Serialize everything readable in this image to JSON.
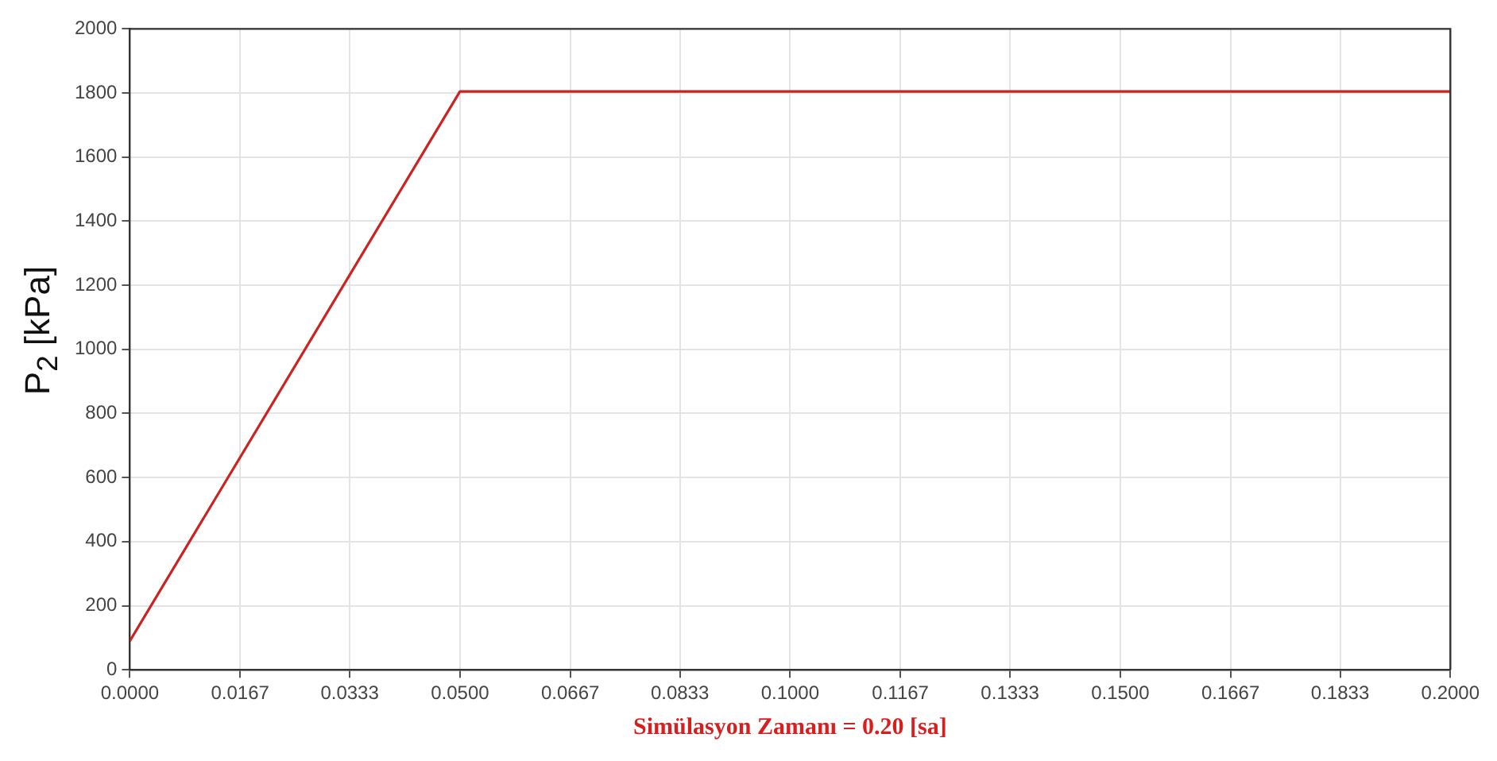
{
  "chart_data": {
    "type": "line",
    "xlabel": "Simülasyon Zamanı = 0.20 [sa]",
    "ylabel": "P$_{2}$ [kPa]",
    "x": [
      0,
      0.05,
      0.2
    ],
    "series": [
      {
        "color": "#cc2222",
        "values": [
          90,
          1805,
          1805
        ]
      }
    ],
    "xlim": [
      0,
      0.2
    ],
    "xticks": [
      {
        "value": 0,
        "label": "0.0000"
      },
      {
        "value": 0.0167,
        "label": "0.0167"
      },
      {
        "value": 0.0333,
        "label": "0.0333"
      },
      {
        "value": 0.05,
        "label": "0.0500"
      },
      {
        "value": 0.0667,
        "label": "0.0667"
      },
      {
        "value": 0.0833,
        "label": "0.0833"
      },
      {
        "value": 0.1,
        "label": "0.1000"
      },
      {
        "value": 0.1167,
        "label": "0.1167"
      },
      {
        "value": 0.1333,
        "label": "0.1333"
      },
      {
        "value": 0.15,
        "label": "0.1500"
      },
      {
        "value": 0.1667,
        "label": "0.1667"
      },
      {
        "value": 0.1833,
        "label": "0.1833"
      },
      {
        "value": 0.2,
        "label": "0.2000"
      }
    ],
    "ylim": [
      0,
      2000
    ],
    "yticks": [
      0,
      200,
      400,
      600,
      800,
      1000,
      1200,
      1400,
      1600,
      1800,
      2000
    ],
    "grid": true,
    "legend": false,
    "marker": "none",
    "line_style": "solid"
  }
}
